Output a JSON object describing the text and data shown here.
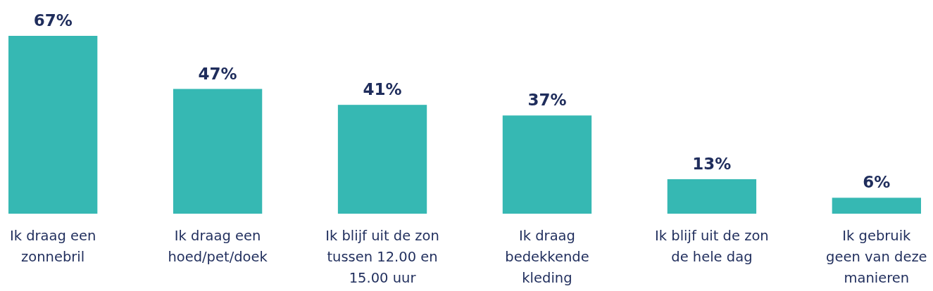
{
  "chart_data": {
    "type": "bar",
    "categories": [
      "Ik draag een\nzonnebril",
      "Ik draag een\nhoed/pet/doek",
      "Ik blijf uit de zon\ntussen 12.00 en\n15.00 uur",
      "Ik draag\nbedekkende\nkleding",
      "Ik blijf uit de zon\nde hele dag",
      "Ik gebruik\ngeen van deze\nmanieren"
    ],
    "values": [
      67,
      47,
      41,
      37,
      13,
      6
    ],
    "value_labels": [
      "67%",
      "47%",
      "41%",
      "37%",
      "13%",
      "6%"
    ],
    "color": "#36b8b3"
  }
}
